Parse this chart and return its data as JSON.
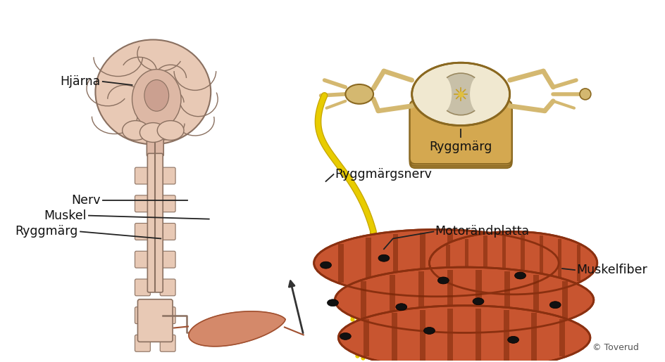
{
  "bg_color": "#ffffff",
  "labels": {
    "hjarna": "Hjärna",
    "nerv": "Nerv",
    "muskel": "Muskel",
    "ryggmarg": "Ryggmärg",
    "ryggmarg2": "Ryggmärg",
    "ryggmargsnerv": "Ryggmärgsnerv",
    "motorandplatta": "Motorändplatta",
    "muskelfiber": "Muskelfiber",
    "copyright": "© Toverud"
  },
  "colors": {
    "brain_fill": "#e8c9b5",
    "brain_stroke": "#8a7060",
    "brain_inner": "#d4b0a0",
    "spinal_fill": "#e8c9b5",
    "spinal_stroke": "#8a7060",
    "muscle_fill": "#d4896a",
    "muscle_dark": "#a05030",
    "nerve_yellow": "#e8cc00",
    "nerve_outline": "#c8a800",
    "spinecord_beige": "#d4b870",
    "spinecord_outline": "#8a6820",
    "spinecord_gray": "#c8c0a8",
    "spinecord_white": "#f0e8d0",
    "text_color": "#111111",
    "line_color": "#222222",
    "fiber_main": "#c85530",
    "fiber_dark": "#8a3010",
    "fiber_stripe": "#7a2808",
    "nucleus": "#111111"
  },
  "figsize": [
    9.44,
    5.15
  ],
  "dpi": 100
}
